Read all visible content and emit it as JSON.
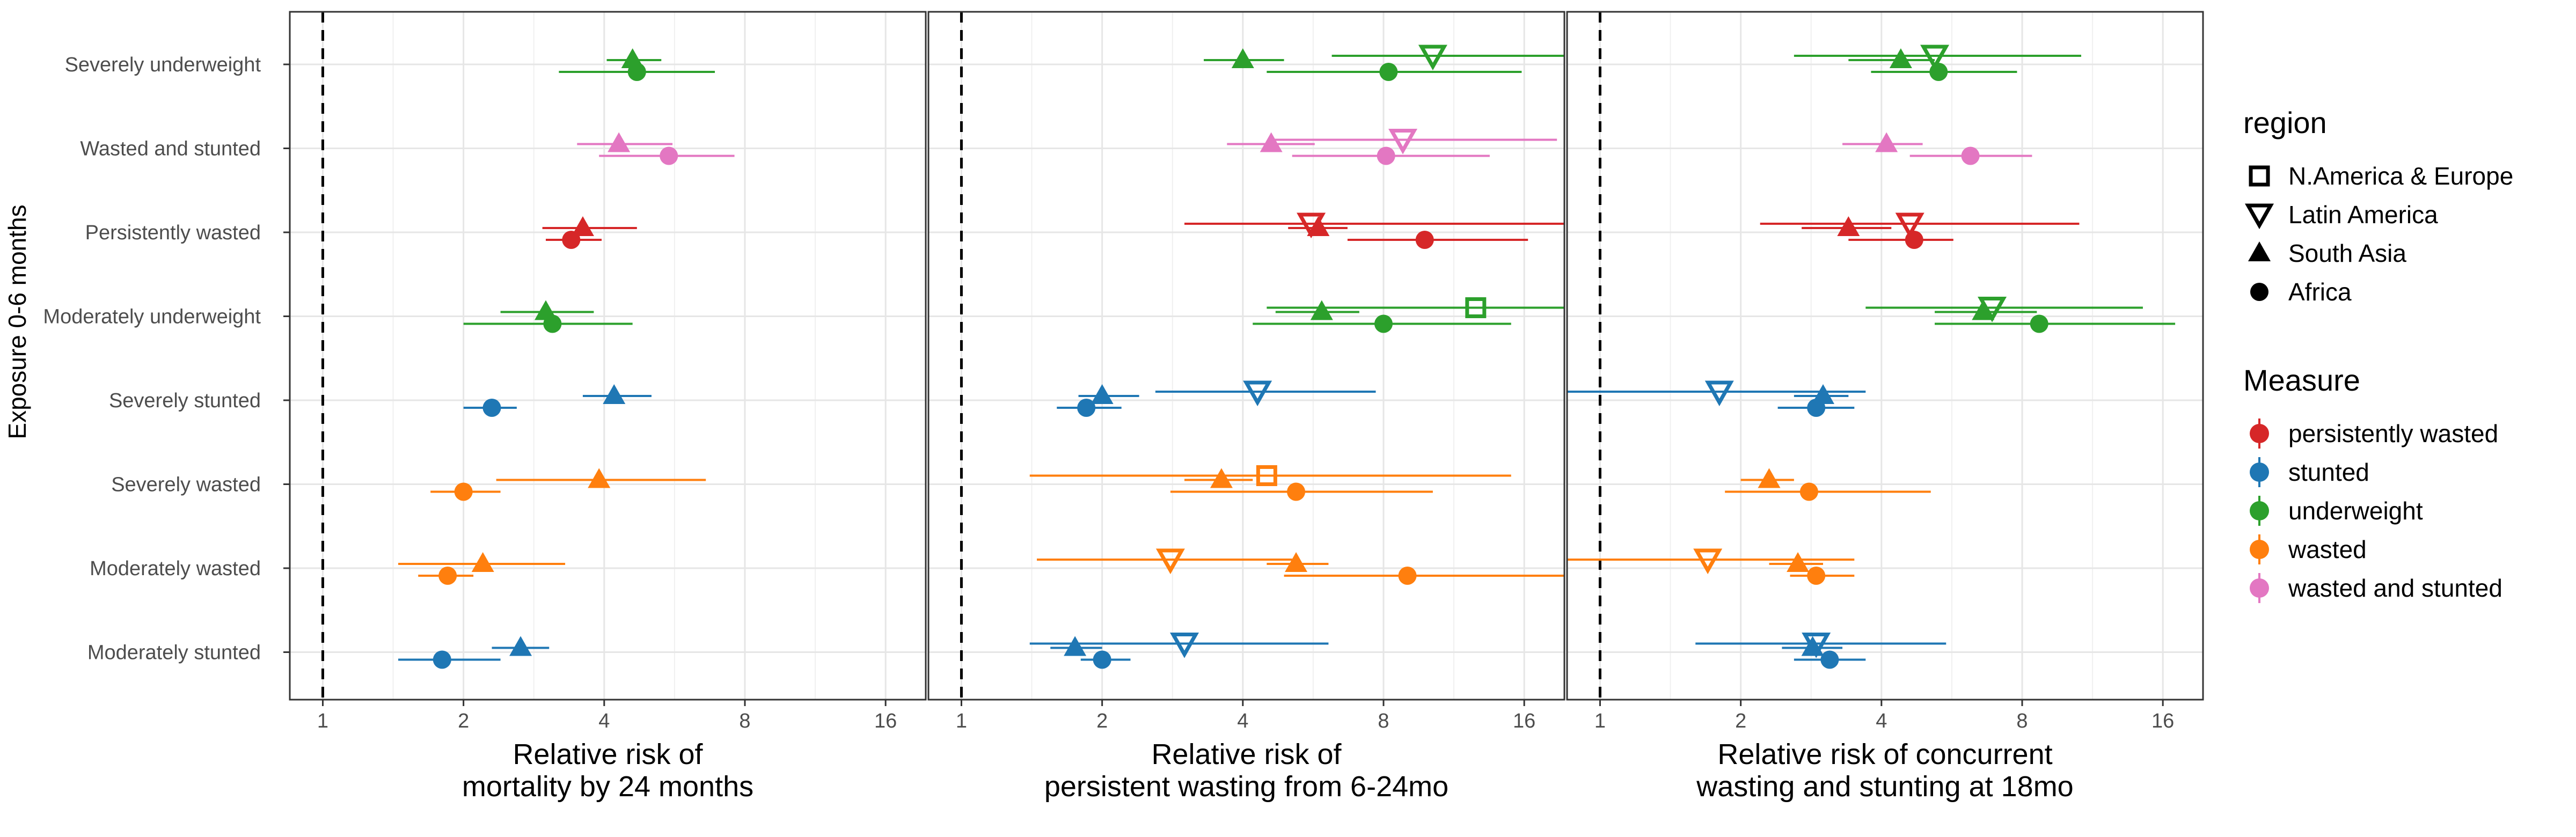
{
  "chart_data": {
    "type": "scatter",
    "subtype": "forest-plot",
    "scale": "log2",
    "y_axis_title": "Exposure 0-6 months",
    "categories": [
      "Severely underweight",
      "Wasted and stunted",
      "Persistently wasted",
      "Moderately underweight",
      "Severely stunted",
      "Severely wasted",
      "Moderately wasted",
      "Moderately stunted"
    ],
    "x_ticks": [
      1,
      2,
      4,
      8,
      16
    ],
    "x_tick_labels": [
      "1",
      "2",
      "4",
      "8",
      "16"
    ],
    "reference_line": 1,
    "grid": true,
    "legend_position": "right",
    "region_legend": {
      "title": "region",
      "items": [
        {
          "label": "N.America & Europe",
          "shape": "square-open"
        },
        {
          "label": "Latin America",
          "shape": "triangle-down-open"
        },
        {
          "label": "South Asia",
          "shape": "triangle-up-filled"
        },
        {
          "label": "Africa",
          "shape": "circle-filled"
        }
      ]
    },
    "measure_legend": {
      "title": "Measure",
      "items": [
        {
          "label": "persistently wasted",
          "color": "#D62728"
        },
        {
          "label": "stunted",
          "color": "#1F77B4"
        },
        {
          "label": "underweight",
          "color": "#2CA02C"
        },
        {
          "label": "wasted",
          "color": "#FF7F0E"
        },
        {
          "label": "wasted and stunted",
          "color": "#E377C2"
        }
      ]
    },
    "panels": [
      {
        "xlabel": [
          "Relative risk of",
          "mortality by 24 months"
        ],
        "xlim": [
          0.85,
          19.5
        ],
        "points": [
          {
            "cat": 0,
            "region": "South Asia",
            "est": 4.6,
            "lo": 4.05,
            "hi": 5.3
          },
          {
            "cat": 0,
            "region": "Africa",
            "est": 4.7,
            "lo": 3.2,
            "hi": 6.9
          },
          {
            "cat": 1,
            "region": "South Asia",
            "est": 4.3,
            "lo": 3.5,
            "hi": 5.6
          },
          {
            "cat": 1,
            "region": "Africa",
            "est": 5.5,
            "lo": 3.9,
            "hi": 7.6
          },
          {
            "cat": 2,
            "region": "South Asia",
            "est": 3.6,
            "lo": 2.95,
            "hi": 4.7
          },
          {
            "cat": 2,
            "region": "Africa",
            "est": 3.4,
            "lo": 3.0,
            "hi": 3.95
          },
          {
            "cat": 3,
            "region": "South Asia",
            "est": 3.0,
            "lo": 2.4,
            "hi": 3.8
          },
          {
            "cat": 3,
            "region": "Africa",
            "est": 3.1,
            "lo": 2.0,
            "hi": 4.6
          },
          {
            "cat": 4,
            "region": "South Asia",
            "est": 4.2,
            "lo": 3.6,
            "hi": 5.05
          },
          {
            "cat": 4,
            "region": "Africa",
            "est": 2.3,
            "lo": 2.0,
            "hi": 2.6
          },
          {
            "cat": 5,
            "region": "South Asia",
            "est": 3.9,
            "lo": 2.35,
            "hi": 6.6
          },
          {
            "cat": 5,
            "region": "Africa",
            "est": 2.0,
            "lo": 1.7,
            "hi": 2.4
          },
          {
            "cat": 6,
            "region": "South Asia",
            "est": 2.2,
            "lo": 1.45,
            "hi": 3.3
          },
          {
            "cat": 6,
            "region": "Africa",
            "est": 1.85,
            "lo": 1.6,
            "hi": 2.1
          },
          {
            "cat": 7,
            "region": "South Asia",
            "est": 2.65,
            "lo": 2.3,
            "hi": 3.05
          },
          {
            "cat": 7,
            "region": "Africa",
            "est": 1.8,
            "lo": 1.45,
            "hi": 2.4
          }
        ]
      },
      {
        "xlabel": [
          "Relative risk of",
          "persistent wasting from 6-24mo"
        ],
        "xlim": [
          0.85,
          19.5
        ],
        "points": [
          {
            "cat": 0,
            "region": "Latin America",
            "est": 10.2,
            "lo": 6.2,
            "hi": 19.5,
            "clip_hi": true
          },
          {
            "cat": 0,
            "region": "South Asia",
            "est": 4.0,
            "lo": 3.3,
            "hi": 4.9
          },
          {
            "cat": 0,
            "region": "Africa",
            "est": 8.2,
            "lo": 4.5,
            "hi": 15.8
          },
          {
            "cat": 1,
            "region": "Latin America",
            "est": 8.8,
            "lo": 4.6,
            "hi": 18.8
          },
          {
            "cat": 1,
            "region": "South Asia",
            "est": 4.6,
            "lo": 3.7,
            "hi": 5.7
          },
          {
            "cat": 1,
            "region": "Africa",
            "est": 8.1,
            "lo": 5.1,
            "hi": 13.5
          },
          {
            "cat": 2,
            "region": "Latin America",
            "est": 5.6,
            "lo": 3.0,
            "hi": 8.8
          },
          {
            "cat": 2,
            "region": "South Asia",
            "est": 5.8,
            "lo": 5.0,
            "hi": 6.7
          },
          {
            "cat": 2,
            "region": "Africa",
            "est": 9.8,
            "lo": 6.7,
            "hi": 16.3
          },
          {
            "cat": 2,
            "region": "N.America & Europe",
            "est": 12.0,
            "lo": 8.6,
            "hi": 19.5,
            "clip_hi": true,
            "marker": false
          },
          {
            "cat": 3,
            "region": "N.America & Europe",
            "est": 12.6,
            "lo": 4.5,
            "hi": 19.5,
            "clip_hi": true
          },
          {
            "cat": 3,
            "region": "South Asia",
            "est": 5.9,
            "lo": 4.7,
            "hi": 7.1
          },
          {
            "cat": 3,
            "region": "Africa",
            "est": 8.0,
            "lo": 4.2,
            "hi": 15.0
          },
          {
            "cat": 4,
            "region": "Latin America",
            "est": 4.3,
            "lo": 2.6,
            "hi": 7.7
          },
          {
            "cat": 4,
            "region": "South Asia",
            "est": 2.0,
            "lo": 1.78,
            "hi": 2.4
          },
          {
            "cat": 4,
            "region": "Africa",
            "est": 1.85,
            "lo": 1.6,
            "hi": 2.2
          },
          {
            "cat": 5,
            "region": "N.America & Europe",
            "est": 4.5,
            "lo": 1.4,
            "hi": 15.0
          },
          {
            "cat": 5,
            "region": "South Asia",
            "est": 3.6,
            "lo": 3.0,
            "hi": 4.2
          },
          {
            "cat": 5,
            "region": "Africa",
            "est": 5.2,
            "lo": 2.8,
            "hi": 10.2
          },
          {
            "cat": 6,
            "region": "Latin America",
            "est": 2.8,
            "lo": 1.45,
            "hi": 5.1
          },
          {
            "cat": 6,
            "region": "South Asia",
            "est": 5.2,
            "lo": 4.5,
            "hi": 6.1
          },
          {
            "cat": 6,
            "region": "Africa",
            "est": 9.0,
            "lo": 4.9,
            "hi": 19.5,
            "clip_hi": true
          },
          {
            "cat": 7,
            "region": "Latin America",
            "est": 3.0,
            "lo": 1.4,
            "hi": 6.1
          },
          {
            "cat": 7,
            "region": "South Asia",
            "est": 1.75,
            "lo": 1.55,
            "hi": 2.0
          },
          {
            "cat": 7,
            "region": "Africa",
            "est": 2.0,
            "lo": 1.8,
            "hi": 2.3
          }
        ]
      },
      {
        "xlabel": [
          "Relative risk of concurrent",
          "wasting and stunting at 18mo"
        ],
        "xlim": [
          0.85,
          19.5
        ],
        "points": [
          {
            "cat": 0,
            "region": "Latin America",
            "est": 5.2,
            "lo": 2.6,
            "hi": 10.7
          },
          {
            "cat": 0,
            "region": "South Asia",
            "est": 4.4,
            "lo": 3.4,
            "hi": 5.2
          },
          {
            "cat": 0,
            "region": "Africa",
            "est": 5.3,
            "lo": 3.8,
            "hi": 7.8
          },
          {
            "cat": 1,
            "region": "South Asia",
            "est": 4.1,
            "lo": 3.3,
            "hi": 4.9
          },
          {
            "cat": 1,
            "region": "Africa",
            "est": 6.2,
            "lo": 4.6,
            "hi": 8.4
          },
          {
            "cat": 2,
            "region": "Latin America",
            "est": 4.6,
            "lo": 2.2,
            "hi": 10.6
          },
          {
            "cat": 2,
            "region": "South Asia",
            "est": 3.4,
            "lo": 2.7,
            "hi": 4.2
          },
          {
            "cat": 2,
            "region": "Africa",
            "est": 4.7,
            "lo": 3.4,
            "hi": 5.7
          },
          {
            "cat": 3,
            "region": "Latin America",
            "est": 6.9,
            "lo": 3.7,
            "hi": 14.5
          },
          {
            "cat": 3,
            "region": "South Asia",
            "est": 6.6,
            "lo": 5.2,
            "hi": 8.6
          },
          {
            "cat": 3,
            "region": "Africa",
            "est": 8.7,
            "lo": 5.2,
            "hi": 17.0
          },
          {
            "cat": 4,
            "region": "Latin America",
            "est": 1.8,
            "lo": 0.85,
            "hi": 3.7,
            "clip_lo": true
          },
          {
            "cat": 4,
            "region": "South Asia",
            "est": 3.0,
            "lo": 2.6,
            "hi": 3.4
          },
          {
            "cat": 4,
            "region": "Africa",
            "est": 2.9,
            "lo": 2.4,
            "hi": 3.5
          },
          {
            "cat": 5,
            "region": "South Asia",
            "est": 2.3,
            "lo": 2.0,
            "hi": 2.6
          },
          {
            "cat": 5,
            "region": "Africa",
            "est": 2.8,
            "lo": 1.85,
            "hi": 5.1
          },
          {
            "cat": 6,
            "region": "Latin America",
            "est": 1.7,
            "lo": 0.85,
            "hi": 3.5,
            "clip_lo": true
          },
          {
            "cat": 6,
            "region": "South Asia",
            "est": 2.65,
            "lo": 2.3,
            "hi": 3.0
          },
          {
            "cat": 6,
            "region": "Africa",
            "est": 2.9,
            "lo": 2.55,
            "hi": 3.5
          },
          {
            "cat": 7,
            "region": "Latin America",
            "est": 2.9,
            "lo": 1.6,
            "hi": 5.5
          },
          {
            "cat": 7,
            "region": "South Asia",
            "est": 2.85,
            "lo": 2.45,
            "hi": 3.3
          },
          {
            "cat": 7,
            "region": "Africa",
            "est": 3.1,
            "lo": 2.6,
            "hi": 3.7
          }
        ]
      }
    ]
  }
}
